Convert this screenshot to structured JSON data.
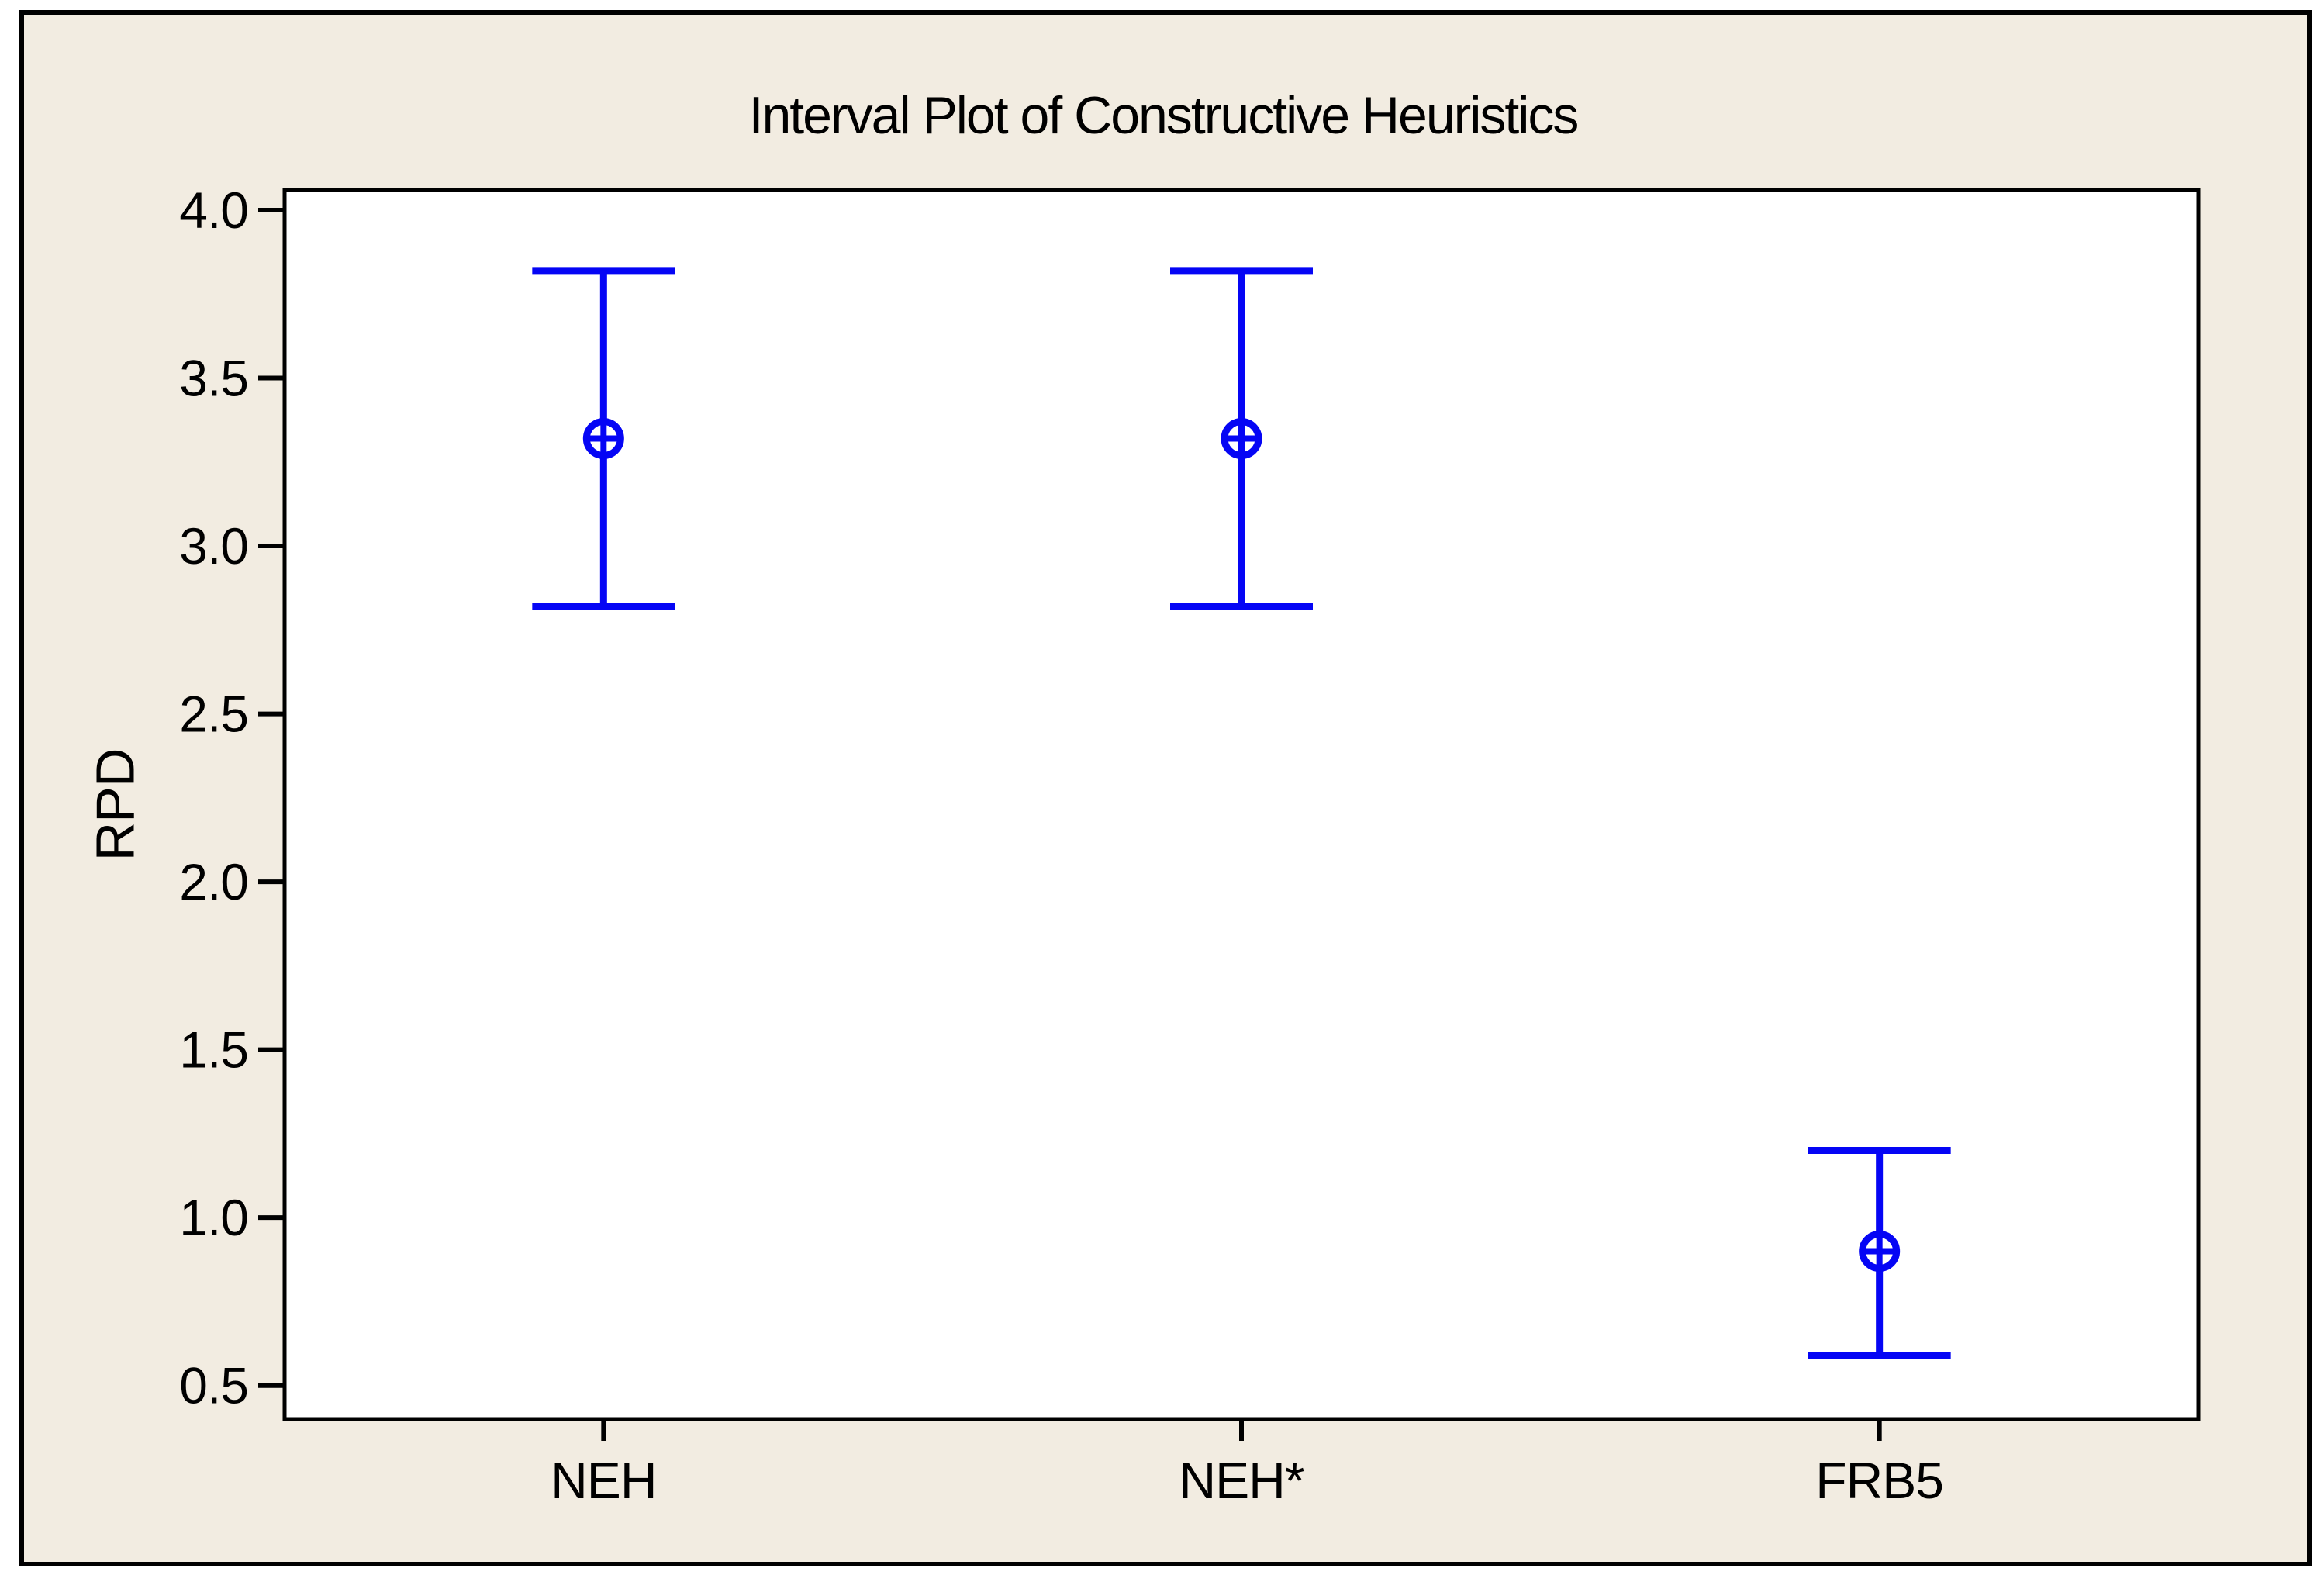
{
  "figure": {
    "background_color": "#F2ECE1",
    "plot_background_color": "#FFFFFF",
    "frame_color": "#000000",
    "interval_color": "#0505F5",
    "mean_marker_icon": "circled-plus-icon"
  },
  "chart_data": {
    "type": "interval",
    "title": "Interval Plot of Constructive Heuristics",
    "xlabel": "",
    "ylabel": "RPD",
    "categories": [
      "NEH",
      "NEH*",
      "FRB5"
    ],
    "series": [
      {
        "name": "NEH",
        "mean": 3.32,
        "ci_low": 2.82,
        "ci_high": 3.82
      },
      {
        "name": "NEH*",
        "mean": 3.32,
        "ci_low": 2.82,
        "ci_high": 3.82
      },
      {
        "name": "FRB5",
        "mean": 0.9,
        "ci_low": 0.59,
        "ci_high": 1.2
      }
    ],
    "ylim": [
      0.4,
      4.06
    ],
    "yticks": [
      0.5,
      1.0,
      1.5,
      2.0,
      2.5,
      3.0,
      3.5,
      4.0
    ],
    "ytick_label_format": "one-decimal",
    "grid": false,
    "legend_position": "none"
  }
}
